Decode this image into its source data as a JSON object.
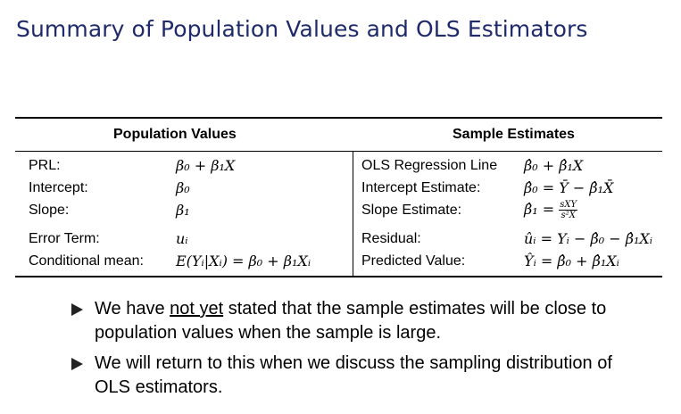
{
  "title": "Summary of Population Values and OLS Estimators",
  "table": {
    "header_population": "Population Values",
    "header_sample": "Sample Estimates",
    "rows": [
      {
        "pop_label": "PRL:",
        "pop_value": "β₀ + β₁X",
        "samp_label": "OLS Regression Line",
        "samp_value": "β̂₀ + β̂₁X"
      },
      {
        "pop_label": "Intercept:",
        "pop_value": "β₀",
        "samp_label": "Intercept Estimate:",
        "samp_value": "β̂₀ = Ȳ − β̂₁X̄"
      },
      {
        "pop_label": "Slope:",
        "pop_value": "β₁",
        "samp_label": "Slope Estimate:",
        "samp_value_prefix": "β̂₁ =",
        "samp_frac_num": "sXY",
        "samp_frac_den": "s²X"
      },
      {
        "pop_label": "Error Term:",
        "pop_value": "uᵢ",
        "samp_label": "Residual:",
        "samp_value": "ûᵢ = Yᵢ − β̂₀ − β̂₁Xᵢ"
      },
      {
        "pop_label": "Conditional mean:",
        "pop_value": "E(Yᵢ|Xᵢ) = β₀ + β₁Xᵢ",
        "samp_label": "Predicted Value:",
        "samp_value": "Ŷᵢ = β̂₀ + β̂₁Xᵢ"
      }
    ]
  },
  "bullets": [
    {
      "pre": "We have ",
      "emph": "not yet",
      "post": " stated that the sample estimates will be close to population values when the sample is large."
    },
    {
      "pre": "We will return to this when we discuss the sampling distribution of OLS estimators.",
      "emph": "",
      "post": ""
    }
  ]
}
